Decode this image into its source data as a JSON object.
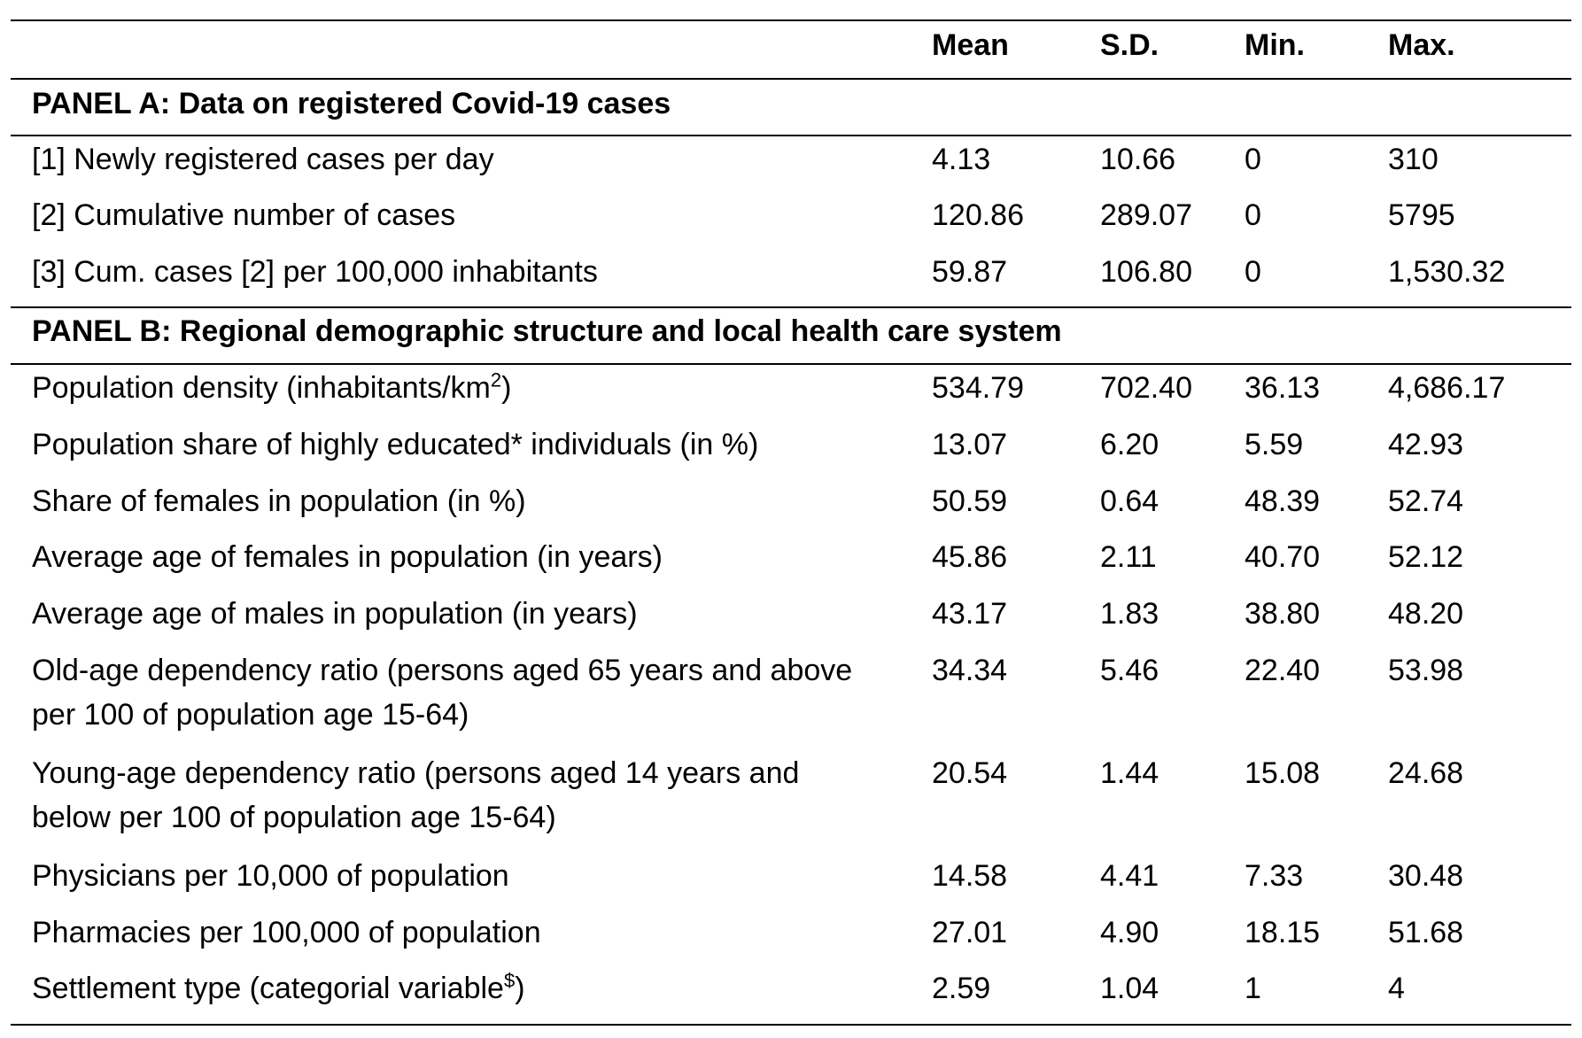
{
  "header": {
    "mean": "Mean",
    "sd": "S.D.",
    "min": "Min.",
    "max": "Max."
  },
  "panel_a": {
    "title": "PANEL A: Data on registered Covid-19 cases",
    "rows": [
      {
        "label": "[1] Newly registered cases per day",
        "mean": "4.13",
        "sd": "10.66",
        "min": "0",
        "max": "310"
      },
      {
        "label": "[2] Cumulative number of cases",
        "mean": "120.86",
        "sd": "289.07",
        "min": "0",
        "max": "5795"
      },
      {
        "label": "[3] Cum. cases [2] per 100,000 inhabitants",
        "mean": "59.87",
        "sd": "106.80",
        "min": "0",
        "max": "1,530.32"
      }
    ]
  },
  "panel_b": {
    "title": "PANEL B: Regional demographic structure and local health care system",
    "rows": [
      {
        "label": "Population density (inhabitants/km",
        "sup": "2",
        "label_end": ")",
        "mean": "534.79",
        "sd": "702.40",
        "min": "36.13",
        "max": "4,686.17"
      },
      {
        "label": "Population share of highly educated* individuals (in %)",
        "mean": "13.07",
        "sd": "6.20",
        "min": "5.59",
        "max": "42.93"
      },
      {
        "label": "Share of females in population (in %)",
        "mean": "50.59",
        "sd": "0.64",
        "min": "48.39",
        "max": "52.74"
      },
      {
        "label": "Average age of females in population (in years)",
        "mean": "45.86",
        "sd": "2.11",
        "min": "40.70",
        "max": "52.12"
      },
      {
        "label": "Average age of males in population (in years)",
        "mean": "43.17",
        "sd": "1.83",
        "min": "38.80",
        "max": "48.20"
      },
      {
        "label": "Old-age dependency ratio (persons aged 65 years and above per 100 of population age 15-64)",
        "mean": "34.34",
        "sd": "5.46",
        "min": "22.40",
        "max": "53.98"
      },
      {
        "label": "Young-age dependency ratio (persons aged 14 years and below per 100 of population age 15-64)",
        "mean": "20.54",
        "sd": "1.44",
        "min": "15.08",
        "max": "24.68"
      },
      {
        "label": "Physicians per 10,000 of population",
        "mean": "14.58",
        "sd": "4.41",
        "min": "7.33",
        "max": "30.48"
      },
      {
        "label": "Pharmacies per 100,000 of population",
        "mean": "27.01",
        "sd": "4.90",
        "min": "18.15",
        "max": "51.68"
      },
      {
        "label": "Settlement type (categorial variable",
        "sup": "$",
        "label_end": ")",
        "mean": "2.59",
        "sd": "1.04",
        "min": "1",
        "max": "4"
      }
    ]
  }
}
